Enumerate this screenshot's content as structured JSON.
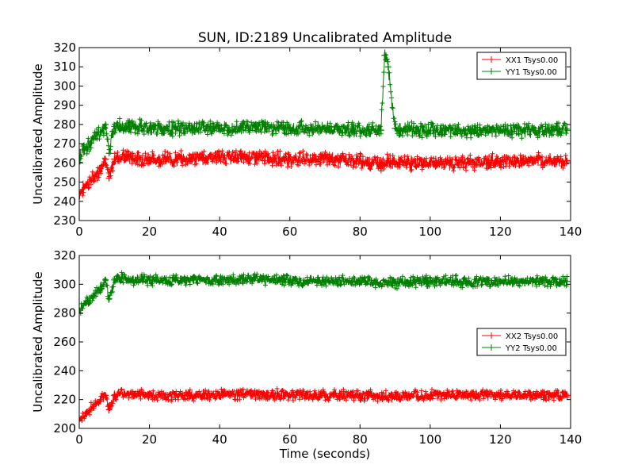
{
  "title": "SUN, ID:2189 Uncalibrated Amplitude",
  "chart_data": [
    {
      "type": "line",
      "marker": "+",
      "ylabel": "Uncalibrated Amplitude",
      "xlabel": "",
      "xlim": [
        0,
        140
      ],
      "ylim": [
        230,
        320
      ],
      "xticks": [
        0,
        20,
        40,
        60,
        80,
        100,
        120,
        140
      ],
      "yticks": [
        230,
        240,
        250,
        260,
        270,
        280,
        290,
        300,
        310,
        320
      ],
      "grid": false,
      "legend_position": "top-right",
      "x": [
        0,
        2,
        4,
        6,
        7.5,
        8.5,
        10,
        11,
        14,
        20,
        30,
        40,
        50,
        60,
        70,
        80,
        86,
        87,
        88,
        90,
        100,
        110,
        120,
        130,
        139
      ],
      "series": [
        {
          "name": "XX1 Tsys0.00",
          "color": "#ff0000",
          "values": [
            244,
            249,
            252,
            257,
            262,
            252,
            262,
            263,
            263,
            262,
            262,
            263,
            263,
            262,
            262,
            261,
            260,
            260,
            261,
            260,
            260,
            260,
            261,
            261,
            261
          ]
        },
        {
          "name": "YY1 Tsys0.00",
          "color": "#008000",
          "values": [
            264,
            268,
            272,
            276,
            280,
            265,
            279,
            279,
            279,
            278,
            278,
            278,
            279,
            278,
            278,
            277,
            277,
            316,
            310,
            278,
            277,
            277,
            277,
            277,
            277
          ]
        }
      ]
    },
    {
      "type": "line",
      "marker": "+",
      "ylabel": "Uncalibrated Amplitude",
      "xlabel": "Time (seconds)",
      "xlim": [
        0,
        140
      ],
      "ylim": [
        200,
        320
      ],
      "xticks": [
        0,
        20,
        40,
        60,
        80,
        100,
        120,
        140
      ],
      "yticks": [
        200,
        220,
        240,
        260,
        280,
        300,
        320
      ],
      "grid": false,
      "legend_position": "center-right",
      "x": [
        0,
        2,
        4,
        6,
        7.5,
        8.5,
        10,
        11,
        14,
        20,
        30,
        40,
        50,
        60,
        70,
        80,
        90,
        100,
        110,
        120,
        130,
        139
      ],
      "series": [
        {
          "name": "XX2 Tsys0.00",
          "color": "#ff0000",
          "values": [
            207,
            211,
            215,
            219,
            223,
            213,
            223,
            224,
            224,
            223,
            223,
            223,
            224,
            223,
            223,
            223,
            222,
            223,
            223,
            223,
            223,
            223
          ]
        },
        {
          "name": "YY2 Tsys0.00",
          "color": "#008000",
          "values": [
            282,
            287,
            292,
            297,
            303,
            290,
            303,
            304,
            304,
            303,
            303,
            303,
            304,
            303,
            302,
            302,
            301,
            302,
            302,
            302,
            302,
            302
          ]
        }
      ]
    }
  ]
}
